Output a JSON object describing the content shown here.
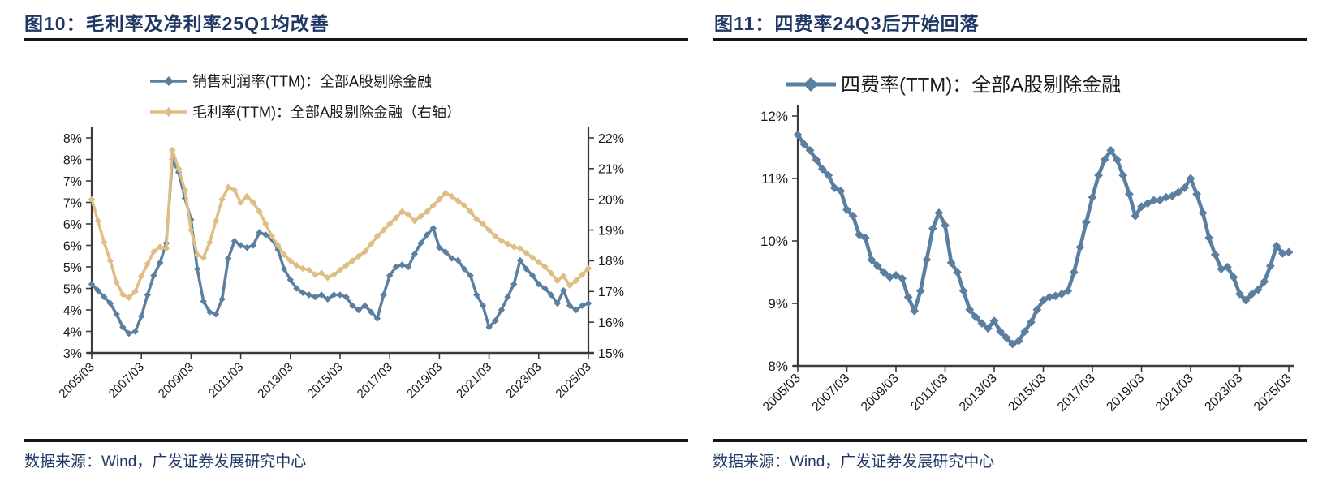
{
  "figures": [
    {
      "title": "图10：毛利率及净利率25Q1均改善",
      "source_note": "数据来源：Wind，广发证券发展研究中心"
    },
    {
      "title": "图11：四费率24Q3后开始回落",
      "source_note": "数据来源：Wind，广发证券发展研究中心"
    }
  ],
  "colors": {
    "title_navy": "#1F3864",
    "rule_black": "#151515",
    "blue_series": "#5B7FA0",
    "tan_series": "#DEBE85",
    "axis_line": "#3a3a3a",
    "tick_text": "#1a1a1a"
  },
  "chart_data": [
    {
      "type": "line",
      "title": "图10：毛利率及净利率25Q1均改善",
      "x_start": "2005/03",
      "x_freq": "quarterly",
      "x_tick_labels": [
        "2005/03",
        "2007/03",
        "2009/03",
        "2011/03",
        "2013/03",
        "2015/03",
        "2017/03",
        "2019/03",
        "2021/03",
        "2023/03",
        "2025/03"
      ],
      "left_axis": {
        "min": 3,
        "max": 8,
        "step": 0.5,
        "tick_labels_top_to_bottom": [
          "8%",
          "8%",
          "7%",
          "7%",
          "6%",
          "6%",
          "5%",
          "5%",
          "4%",
          "4%",
          "3%"
        ]
      },
      "right_axis": {
        "min": 15,
        "max": 22,
        "step": 1,
        "tick_labels_top_to_bottom": [
          "22%",
          "21%",
          "20%",
          "19%",
          "18%",
          "17%",
          "16%",
          "15%"
        ]
      },
      "legend_position": "top",
      "legend_marker": "diamond",
      "grid": false,
      "series": [
        {
          "key": "net-profit-margin",
          "name": "销售利润率(TTM)：全部A股剔除金融",
          "axis": "left",
          "color": "#5B7FA0",
          "values": [
            4.6,
            4.45,
            4.3,
            4.15,
            3.9,
            3.6,
            3.45,
            3.5,
            3.85,
            4.35,
            4.8,
            5.1,
            5.55,
            7.5,
            7.2,
            6.6,
            6.1,
            4.95,
            4.2,
            3.95,
            3.9,
            4.25,
            5.2,
            5.6,
            5.5,
            5.45,
            5.5,
            5.8,
            5.75,
            5.65,
            5.4,
            4.95,
            4.7,
            4.5,
            4.4,
            4.35,
            4.3,
            4.35,
            4.25,
            4.35,
            4.35,
            4.3,
            4.1,
            4.0,
            4.1,
            3.95,
            3.8,
            4.35,
            4.8,
            5.0,
            5.05,
            5.0,
            5.3,
            5.55,
            5.75,
            5.9,
            5.45,
            5.35,
            5.2,
            5.15,
            4.95,
            4.8,
            4.35,
            4.1,
            3.6,
            3.75,
            4.0,
            4.3,
            4.6,
            5.15,
            4.95,
            4.8,
            4.6,
            4.5,
            4.35,
            4.15,
            4.45,
            4.1,
            4.0,
            4.1,
            4.15
          ]
        },
        {
          "key": "gross-margin",
          "name": "毛利率(TTM)：全部A股剔除金融（右轴）",
          "axis": "right",
          "color": "#DEBE85",
          "values": [
            20.0,
            19.3,
            18.6,
            18.0,
            17.3,
            16.9,
            16.8,
            17.0,
            17.5,
            17.9,
            18.3,
            18.45,
            18.4,
            21.6,
            21.0,
            20.3,
            19.0,
            18.2,
            18.1,
            18.6,
            19.3,
            20.0,
            20.4,
            20.3,
            19.9,
            20.1,
            19.9,
            19.6,
            19.2,
            18.8,
            18.5,
            18.2,
            18.0,
            17.85,
            17.75,
            17.7,
            17.55,
            17.6,
            17.45,
            17.55,
            17.7,
            17.85,
            18.0,
            18.15,
            18.3,
            18.55,
            18.8,
            19.0,
            19.2,
            19.4,
            19.6,
            19.5,
            19.3,
            19.45,
            19.6,
            19.8,
            20.0,
            20.2,
            20.1,
            19.95,
            19.8,
            19.6,
            19.35,
            19.2,
            19.0,
            18.8,
            18.65,
            18.55,
            18.45,
            18.4,
            18.25,
            18.1,
            17.95,
            17.8,
            17.6,
            17.35,
            17.5,
            17.2,
            17.35,
            17.55,
            17.75
          ]
        }
      ]
    },
    {
      "type": "line",
      "title": "图11：四费率24Q3后开始回落",
      "x_start": "2005/03",
      "x_freq": "quarterly",
      "x_tick_labels": [
        "2005/03",
        "2007/03",
        "2009/03",
        "2011/03",
        "2013/03",
        "2015/03",
        "2017/03",
        "2019/03",
        "2021/03",
        "2023/03",
        "2025/03"
      ],
      "left_axis": {
        "min": 8,
        "max": 12,
        "step": 1,
        "tick_labels_top_to_bottom": [
          "12%",
          "11%",
          "10%",
          "9%",
          "8%"
        ]
      },
      "legend_position": "top",
      "legend_marker": "diamond",
      "grid": false,
      "series": [
        {
          "key": "four-fee-ratio",
          "name": "四费率(TTM)：全部A股剔除金融",
          "axis": "left",
          "color": "#5B7FA0",
          "values": [
            11.7,
            11.55,
            11.45,
            11.3,
            11.15,
            11.05,
            10.85,
            10.8,
            10.5,
            10.4,
            10.1,
            10.05,
            9.7,
            9.6,
            9.5,
            9.42,
            9.45,
            9.4,
            9.1,
            8.88,
            9.2,
            9.7,
            10.2,
            10.45,
            10.25,
            9.65,
            9.5,
            9.2,
            8.9,
            8.78,
            8.68,
            8.6,
            8.72,
            8.55,
            8.45,
            8.35,
            8.4,
            8.55,
            8.7,
            8.9,
            9.05,
            9.1,
            9.12,
            9.15,
            9.2,
            9.5,
            9.9,
            10.3,
            10.7,
            11.05,
            11.3,
            11.45,
            11.3,
            11.05,
            10.75,
            10.4,
            10.55,
            10.6,
            10.65,
            10.65,
            10.7,
            10.72,
            10.78,
            10.85,
            11.0,
            10.75,
            10.45,
            10.05,
            9.78,
            9.55,
            9.58,
            9.42,
            9.15,
            9.05,
            9.15,
            9.22,
            9.35,
            9.6,
            9.92,
            9.8,
            9.82
          ]
        }
      ]
    }
  ]
}
